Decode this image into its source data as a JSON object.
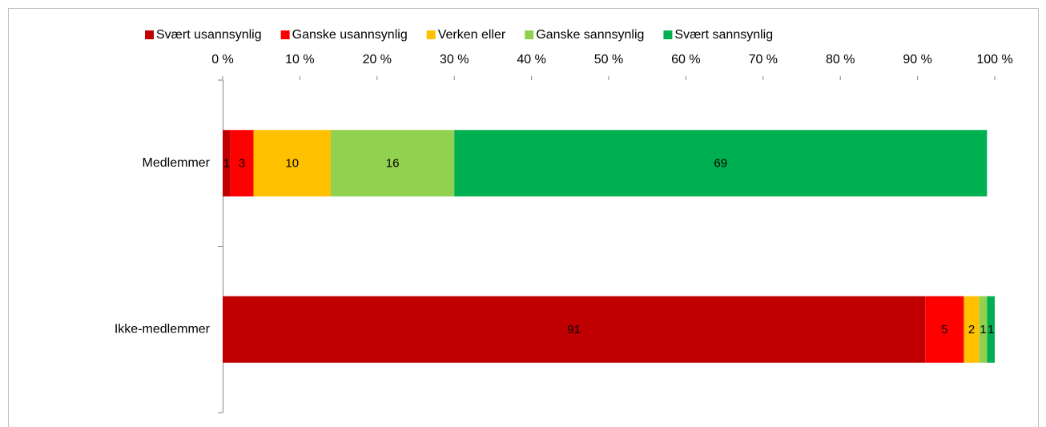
{
  "chart_data": {
    "type": "stacked_bar_horizontal",
    "categories": [
      "Medlemmer",
      "Ikke-medlemmer"
    ],
    "series": [
      {
        "name": "Svært usannsynlig",
        "color": "#c00000",
        "values": [
          1,
          91
        ]
      },
      {
        "name": "Ganske usannsynlig",
        "color": "#ff0000",
        "values": [
          3,
          5
        ]
      },
      {
        "name": "Verken eller",
        "color": "#ffc000",
        "values": [
          10,
          2
        ]
      },
      {
        "name": "Ganske sannsynlig",
        "color": "#92d050",
        "values": [
          16,
          1
        ]
      },
      {
        "name": "Svært sannsynlig",
        "color": "#00b050",
        "values": [
          69,
          1
        ]
      }
    ],
    "xlim": [
      0,
      100
    ],
    "xticks": [
      {
        "value": 0,
        "label": "0 %"
      },
      {
        "value": 10,
        "label": "10 %"
      },
      {
        "value": 20,
        "label": "20 %"
      },
      {
        "value": 30,
        "label": "30 %"
      },
      {
        "value": 40,
        "label": "40 %"
      },
      {
        "value": 50,
        "label": "50 %"
      },
      {
        "value": 60,
        "label": "60 %"
      },
      {
        "value": 70,
        "label": "70 %"
      },
      {
        "value": 80,
        "label": "80 %"
      },
      {
        "value": 90,
        "label": "90 %"
      },
      {
        "value": 100,
        "label": "100 %"
      }
    ],
    "legend": "top"
  }
}
